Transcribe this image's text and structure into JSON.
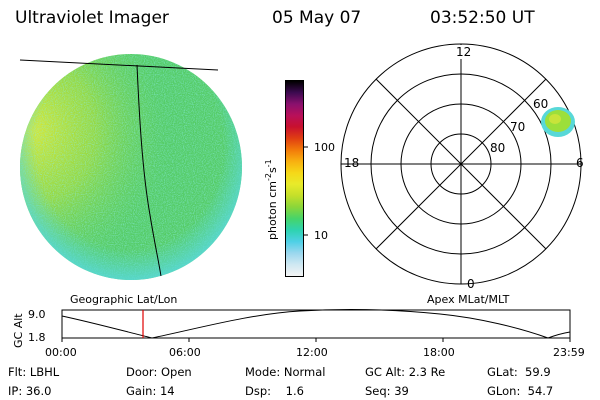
{
  "header": {
    "title": "Ultraviolet Imager",
    "date": "05 May 07",
    "time": "03:52:50 UT"
  },
  "colorbar": {
    "unit_label": "photon cm",
    "unit_exp1": "-2",
    "unit_mid": "s",
    "unit_exp2": "-1",
    "ticks": [
      "100",
      "10"
    ],
    "colors": [
      "#f4f4f4",
      "#cfe8f2",
      "#9ad7ee",
      "#4fd0e6",
      "#2ed3b0",
      "#46d46a",
      "#8ad63a",
      "#c4df2a",
      "#e8ea2a",
      "#f6d818",
      "#f8b010",
      "#f27a0a",
      "#e03e12",
      "#c8102e",
      "#b8105a",
      "#8a106e",
      "#3c0a50",
      "#000000"
    ]
  },
  "geo_panel": {
    "label": "Geographic Lat/Lon",
    "colors": {
      "disk": "#55cc66",
      "dayglow": "#c8e43a",
      "edge": "#58d8d8"
    }
  },
  "polar_panel": {
    "label": "Apex MLat/MLT",
    "mlt_labels": {
      "top": "12",
      "left": "18",
      "right": "6",
      "bottom": "0"
    },
    "mlat_labels": [
      "60",
      "70",
      "80"
    ],
    "blob_color": "#9cdf3a"
  },
  "orbit_plot": {
    "ylabel": "GC Alt",
    "y_ticks": [
      "9.0",
      "1.8"
    ],
    "x_ticks": [
      "00:00",
      "06:00",
      "12:00",
      "18:00",
      "23:59"
    ],
    "marker_color": "#e00000"
  },
  "footer": {
    "flt": "Flt: LBHL",
    "ip": "IP: 36.0",
    "door": "Door: Open",
    "gain": "Gain: 14",
    "mode": "Mode: Normal",
    "dsp": "Dsp:    1.6",
    "gc_alt": "GC Alt: 2.3 Re",
    "seq": "Seq: 39",
    "glat": "GLat:  59.9",
    "glon": "GLon:  54.7"
  }
}
